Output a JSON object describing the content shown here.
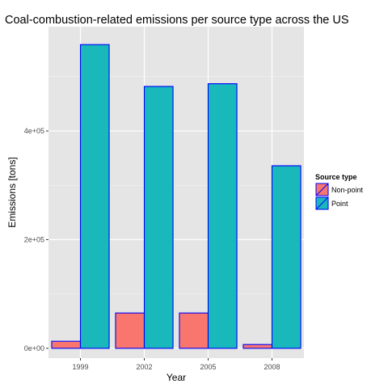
{
  "chart_data": {
    "type": "bar",
    "title": "Coal-combustion-related emissions per source type across the US",
    "xlabel": "Year",
    "ylabel": "Emissions [tons]",
    "categories": [
      "1999",
      "2002",
      "2005",
      "2008"
    ],
    "series": [
      {
        "name": "Non-point",
        "values": [
          13000,
          65000,
          65000,
          7000
        ],
        "color": "#f8766d"
      },
      {
        "name": "Point",
        "values": [
          559000,
          482000,
          487000,
          336000
        ],
        "color": "#19b8bb"
      }
    ],
    "bar_border_color": "#0000ff",
    "ylim": [
      -18000,
      592000
    ],
    "yticks": [
      0,
      200000,
      400000
    ],
    "ytick_labels": [
      "0e+00",
      "2e+05",
      "4e+05"
    ],
    "legend": {
      "title": "Source type",
      "position": "right"
    },
    "panel_background": "#e5e5e5",
    "grid": true
  }
}
